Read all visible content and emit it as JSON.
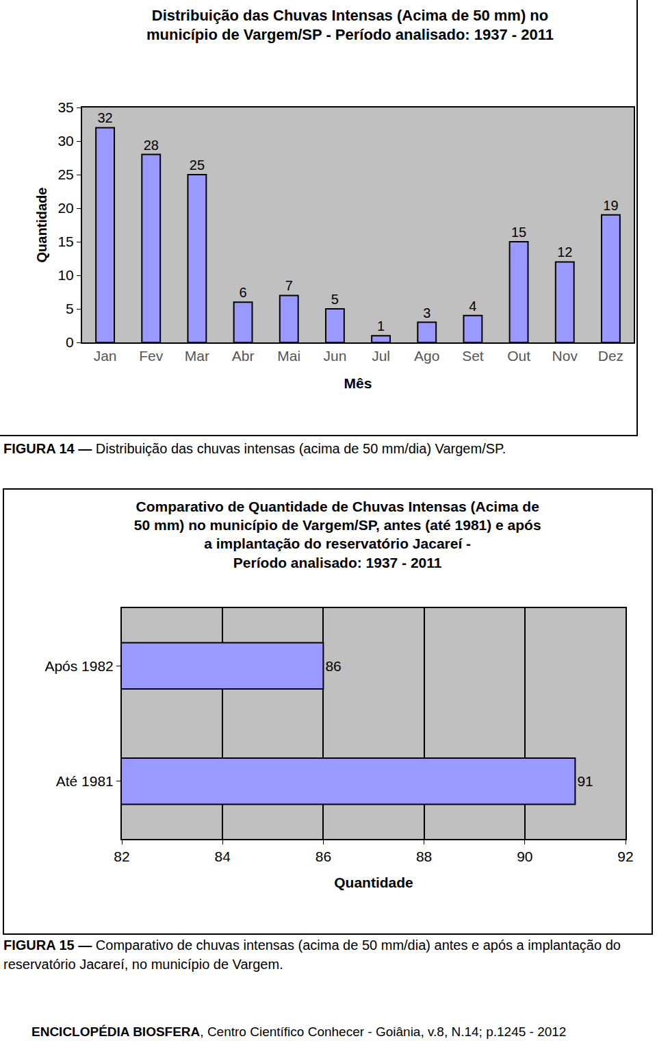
{
  "chart_data": [
    {
      "type": "bar",
      "title": [
        "Distribuição das Chuvas Intensas (Acima de 50 mm) no",
        "município de Vargem/SP - Período analisado: 1937 - 2011"
      ],
      "x_label": "Mês",
      "y_label": "Quantidade",
      "categories": [
        "Jan",
        "Fev",
        "Mar",
        "Abr",
        "Mai",
        "Jun",
        "Jul",
        "Ago",
        "Set",
        "Out",
        "Nov",
        "Dez"
      ],
      "values": [
        32,
        28,
        25,
        6,
        7,
        5,
        1,
        3,
        4,
        15,
        12,
        19
      ],
      "color": "#9999ff",
      "ylim": [
        0,
        35
      ],
      "yticks": [
        0,
        5,
        10,
        15,
        20,
        25,
        30,
        35
      ],
      "grid": false,
      "data_labels": true,
      "caption": {
        "label": "FIGURA 14 —",
        "text": "Distribuição das chuvas intensas (acima de 50 mm/dia) Vargem/SP."
      }
    },
    {
      "type": "bar",
      "orientation": "horizontal",
      "title": [
        "Comparativo de Quantidade de Chuvas Intensas (Acima de",
        "50 mm) no município de Vargem/SP, antes (até 1981) e após",
        "a implantação do reservatório Jacareí -",
        "Período analisado: 1937 - 2011"
      ],
      "x_label": "Quantidade",
      "categories": [
        "Após 1982",
        "Até 1981"
      ],
      "values": [
        86,
        91
      ],
      "color": "#9999ff",
      "xlim": [
        82,
        92
      ],
      "xticks": [
        82,
        84,
        86,
        88,
        90,
        92
      ],
      "grid": true,
      "data_labels": true,
      "caption": {
        "label": "FIGURA 15 —",
        "text": "Comparativo de chuvas intensas (acima de 50 mm/dia) antes e após a implantação do reservatório Jacareí, no município de Vargem."
      }
    }
  ],
  "footer": {
    "label": "ENCICLOPÉDIA BIOSFERA",
    "text": ", Centro Científico Conhecer - Goiânia, v.8, N.14; p.1245 - 2012"
  }
}
